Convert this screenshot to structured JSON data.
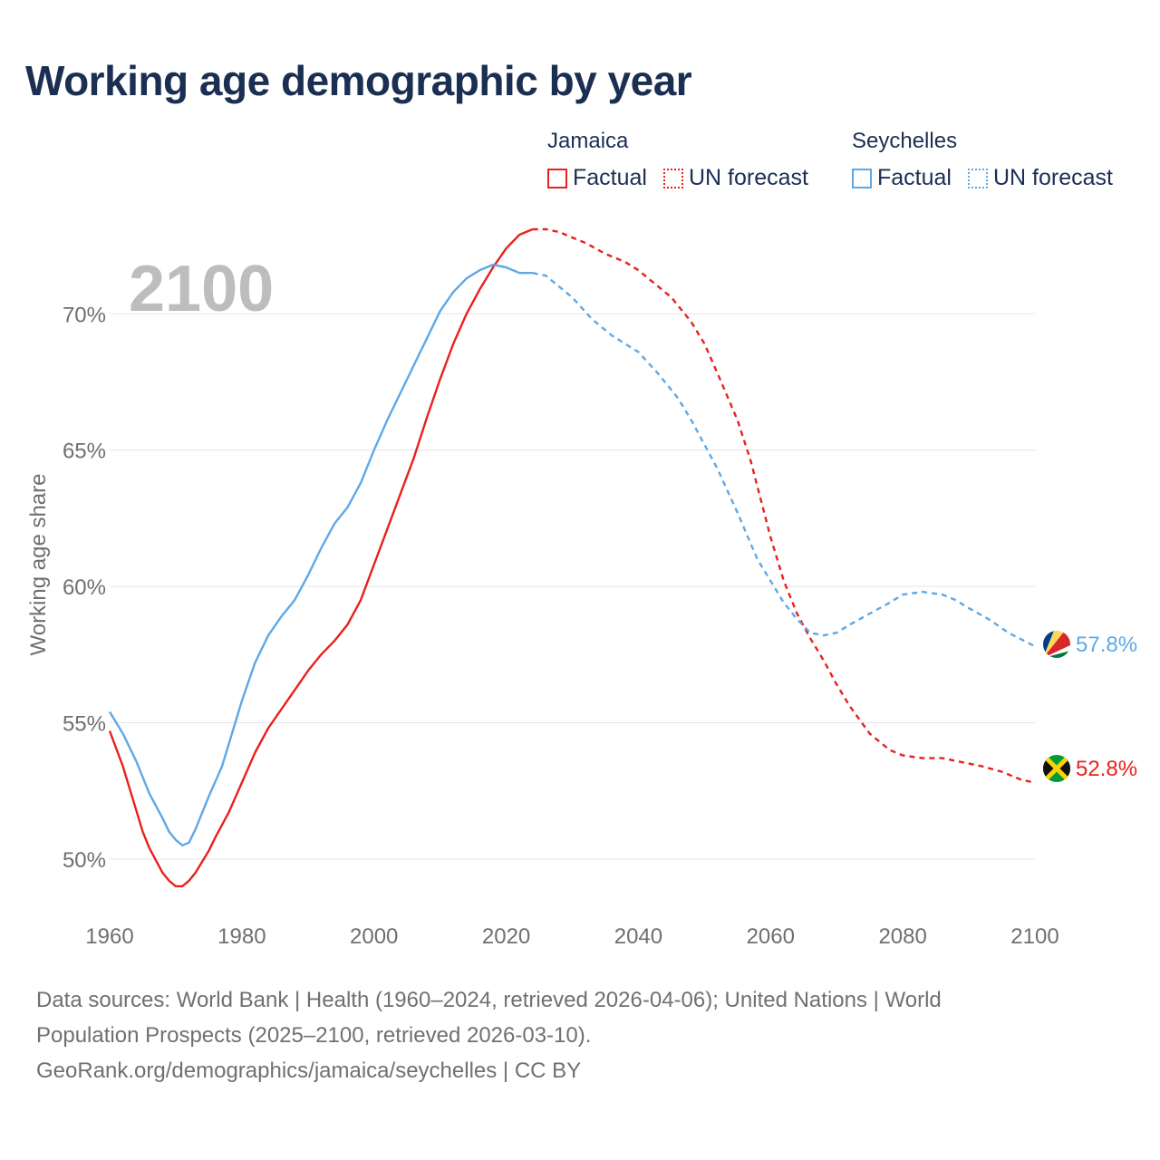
{
  "title": "Working age demographic by year",
  "legend": {
    "groups": [
      {
        "name": "Jamaica",
        "factual": "Factual",
        "forecast": "UN forecast",
        "color": "#e8211c"
      },
      {
        "name": "Seychelles",
        "factual": "Factual",
        "forecast": "UN forecast",
        "color": "#5ea8e6"
      }
    ]
  },
  "year_display": "2100",
  "sources": {
    "line1": "Data sources: World Bank | Health (1960–2024, retrieved 2026-04-06); United Nations | World",
    "line2": "Population Prospects (2025–2100, retrieved 2026-03-10).",
    "line3": "GeoRank.org/demographics/jamaica/seychelles | CC BY"
  },
  "chart_data": {
    "type": "line",
    "title": "Working age demographic by year",
    "xlabel": "",
    "ylabel": "Working age share",
    "xlim": [
      1960,
      2100
    ],
    "ylim": [
      48,
      73.5
    ],
    "x_ticks": [
      1960,
      1980,
      2000,
      2020,
      2040,
      2060,
      2080,
      2100
    ],
    "x_tick_labels": [
      "1960",
      "1980",
      "2000",
      "2020",
      "2040",
      "2060",
      "2080",
      "2100"
    ],
    "y_ticks": [
      50,
      55,
      60,
      65,
      70
    ],
    "y_tick_labels": [
      "50%",
      "55%",
      "60%",
      "65%",
      "70%"
    ],
    "grid": true,
    "forecast_start_year": 2024,
    "series": [
      {
        "name": "Jamaica",
        "color": "#e8211c",
        "end_label": "52.8%",
        "points": [
          [
            1960,
            54.7
          ],
          [
            1962,
            53.4
          ],
          [
            1964,
            51.8
          ],
          [
            1965,
            51.0
          ],
          [
            1966,
            50.4
          ],
          [
            1968,
            49.5
          ],
          [
            1969,
            49.2
          ],
          [
            1970,
            49.0
          ],
          [
            1971,
            49.0
          ],
          [
            1972,
            49.2
          ],
          [
            1973,
            49.5
          ],
          [
            1975,
            50.3
          ],
          [
            1976,
            50.8
          ],
          [
            1978,
            51.7
          ],
          [
            1980,
            52.8
          ],
          [
            1982,
            53.9
          ],
          [
            1984,
            54.8
          ],
          [
            1986,
            55.5
          ],
          [
            1988,
            56.2
          ],
          [
            1990,
            56.9
          ],
          [
            1992,
            57.5
          ],
          [
            1994,
            58.0
          ],
          [
            1996,
            58.6
          ],
          [
            1998,
            59.5
          ],
          [
            2000,
            60.8
          ],
          [
            2002,
            62.1
          ],
          [
            2004,
            63.4
          ],
          [
            2006,
            64.7
          ],
          [
            2008,
            66.2
          ],
          [
            2010,
            67.6
          ],
          [
            2012,
            68.9
          ],
          [
            2014,
            70.0
          ],
          [
            2016,
            70.9
          ],
          [
            2018,
            71.7
          ],
          [
            2020,
            72.4
          ],
          [
            2022,
            72.9
          ],
          [
            2024,
            73.1
          ],
          [
            2026,
            73.1
          ],
          [
            2028,
            73.0
          ],
          [
            2030,
            72.8
          ],
          [
            2032,
            72.6
          ],
          [
            2035,
            72.2
          ],
          [
            2038,
            71.9
          ],
          [
            2040,
            71.6
          ],
          [
            2042,
            71.2
          ],
          [
            2045,
            70.6
          ],
          [
            2048,
            69.7
          ],
          [
            2050,
            68.9
          ],
          [
            2052,
            67.8
          ],
          [
            2055,
            66.1
          ],
          [
            2057,
            64.6
          ],
          [
            2060,
            61.8
          ],
          [
            2062,
            60.2
          ],
          [
            2064,
            59.0
          ],
          [
            2066,
            58.1
          ],
          [
            2068,
            57.3
          ],
          [
            2070,
            56.4
          ],
          [
            2072,
            55.6
          ],
          [
            2075,
            54.6
          ],
          [
            2078,
            54.0
          ],
          [
            2080,
            53.8
          ],
          [
            2083,
            53.7
          ],
          [
            2086,
            53.7
          ],
          [
            2088,
            53.6
          ],
          [
            2090,
            53.5
          ],
          [
            2092,
            53.4
          ],
          [
            2095,
            53.2
          ],
          [
            2098,
            52.9
          ],
          [
            2100,
            52.8
          ]
        ]
      },
      {
        "name": "Seychelles",
        "color": "#5ea8e6",
        "end_label": "57.8%",
        "points": [
          [
            1960,
            55.4
          ],
          [
            1962,
            54.6
          ],
          [
            1964,
            53.6
          ],
          [
            1965,
            53.0
          ],
          [
            1966,
            52.4
          ],
          [
            1968,
            51.5
          ],
          [
            1969,
            51.0
          ],
          [
            1970,
            50.7
          ],
          [
            1971,
            50.5
          ],
          [
            1972,
            50.6
          ],
          [
            1973,
            51.1
          ],
          [
            1975,
            52.3
          ],
          [
            1977,
            53.4
          ],
          [
            1978,
            54.2
          ],
          [
            1980,
            55.8
          ],
          [
            1982,
            57.2
          ],
          [
            1984,
            58.2
          ],
          [
            1986,
            58.9
          ],
          [
            1988,
            59.5
          ],
          [
            1990,
            60.4
          ],
          [
            1992,
            61.4
          ],
          [
            1994,
            62.3
          ],
          [
            1996,
            62.9
          ],
          [
            1998,
            63.8
          ],
          [
            2000,
            65.0
          ],
          [
            2002,
            66.1
          ],
          [
            2004,
            67.1
          ],
          [
            2006,
            68.1
          ],
          [
            2008,
            69.1
          ],
          [
            2010,
            70.1
          ],
          [
            2012,
            70.8
          ],
          [
            2014,
            71.3
          ],
          [
            2016,
            71.6
          ],
          [
            2018,
            71.8
          ],
          [
            2020,
            71.7
          ],
          [
            2022,
            71.5
          ],
          [
            2024,
            71.5
          ],
          [
            2026,
            71.4
          ],
          [
            2028,
            71.0
          ],
          [
            2030,
            70.6
          ],
          [
            2033,
            69.8
          ],
          [
            2036,
            69.2
          ],
          [
            2040,
            68.6
          ],
          [
            2043,
            67.8
          ],
          [
            2046,
            66.9
          ],
          [
            2048,
            66.1
          ],
          [
            2050,
            65.2
          ],
          [
            2052,
            64.3
          ],
          [
            2055,
            62.7
          ],
          [
            2058,
            61.0
          ],
          [
            2060,
            60.2
          ],
          [
            2062,
            59.4
          ],
          [
            2064,
            58.8
          ],
          [
            2066,
            58.3
          ],
          [
            2068,
            58.2
          ],
          [
            2070,
            58.3
          ],
          [
            2072,
            58.6
          ],
          [
            2075,
            59.0
          ],
          [
            2078,
            59.4
          ],
          [
            2080,
            59.7
          ],
          [
            2083,
            59.8
          ],
          [
            2086,
            59.7
          ],
          [
            2088,
            59.5
          ],
          [
            2090,
            59.2
          ],
          [
            2093,
            58.8
          ],
          [
            2096,
            58.3
          ],
          [
            2100,
            57.8
          ]
        ]
      }
    ]
  }
}
